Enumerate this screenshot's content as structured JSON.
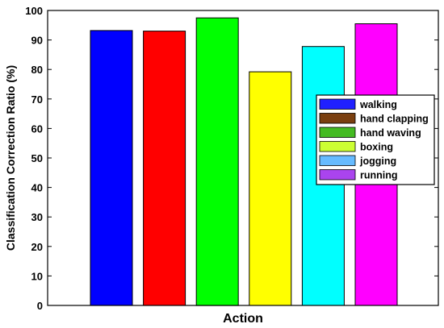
{
  "chart_data": {
    "type": "bar",
    "categories": [
      "walking",
      "hand clapping",
      "hand waving",
      "boxing",
      "jogging",
      "running"
    ],
    "values": [
      93.2,
      93.0,
      97.5,
      79.2,
      87.8,
      95.5
    ],
    "colors": [
      "#0000ff",
      "#ff0000",
      "#00ff00",
      "#ffff00",
      "#00ffff",
      "#ff00ff"
    ],
    "legend": {
      "entries": [
        "walking",
        "hand clapping",
        "hand waving",
        "boxing",
        "jogging",
        "running"
      ],
      "swatch_colors": [
        "#2020ff",
        "#7a3f10",
        "#44bb22",
        "#ccff33",
        "#66bbff",
        "#aa44ee"
      ],
      "placement": "right"
    },
    "xlabel": "Action",
    "ylabel": "Classification Correction Ratio (%)",
    "ylim": [
      0,
      100
    ],
    "yticks": [
      0,
      10,
      20,
      30,
      40,
      50,
      60,
      70,
      80,
      90,
      100
    ],
    "xticklabels": false,
    "grid": false,
    "title": ""
  }
}
